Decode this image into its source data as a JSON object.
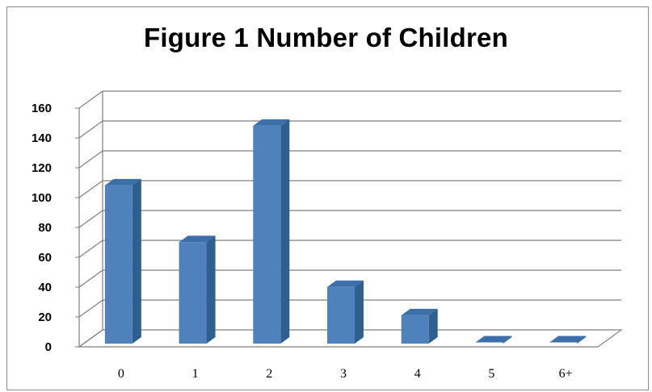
{
  "chart_data": {
    "type": "bar",
    "title": "Figure 1 Number of Children",
    "xlabel": "",
    "ylabel": "",
    "categories": [
      "0",
      "1",
      "2",
      "3",
      "4",
      "5",
      "6+"
    ],
    "values": [
      106,
      68,
      146,
      38,
      19,
      0,
      0
    ],
    "ylim": [
      0,
      160
    ],
    "yticks": [
      "0",
      "20",
      "40",
      "60",
      "80",
      "100",
      "120",
      "140",
      "160"
    ],
    "grid": true,
    "legend": "none",
    "colors": {
      "bar_front": "#4f81bd",
      "bar_side": "#2f5f8f",
      "bar_top": "#3d6fa8",
      "grid": "#7f7f7f",
      "frame": "#8a8a8a"
    }
  }
}
